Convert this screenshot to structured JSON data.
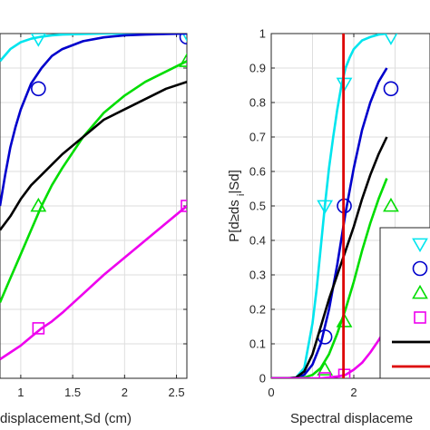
{
  "chart_data": [
    {
      "type": "line",
      "xlabel": "displacement,Sd (cm)",
      "ylabel": "",
      "xlim": [
        0.8,
        2.6
      ],
      "ylim": [
        0,
        1
      ],
      "xticks": [
        "1",
        "1.5",
        "2",
        "2.5"
      ],
      "xtick_values": [
        1,
        1.5,
        2,
        2.5
      ],
      "yticks": [],
      "grid": true,
      "series": [
        {
          "color": "#00e5ee",
          "marker": "triangle-down",
          "x": [
            0.8,
            0.9,
            1.0,
            1.1,
            1.2,
            1.3,
            1.4,
            1.6,
            1.8,
            2.0,
            2.2,
            2.4,
            2.6
          ],
          "y": [
            0.92,
            0.955,
            0.975,
            0.985,
            0.991,
            0.995,
            0.997,
            0.999,
            1,
            1,
            1,
            1,
            1
          ],
          "markers": [
            [
              1.17,
              0.985
            ],
            [
              2.6,
              1.0
            ]
          ]
        },
        {
          "color": "#0000cc",
          "marker": "circle",
          "x": [
            0.8,
            0.85,
            0.9,
            0.95,
            1.0,
            1.1,
            1.2,
            1.3,
            1.4,
            1.6,
            1.8,
            2.0,
            2.2,
            2.4,
            2.6
          ],
          "y": [
            0.5,
            0.59,
            0.67,
            0.73,
            0.78,
            0.855,
            0.9,
            0.935,
            0.955,
            0.978,
            0.989,
            0.995,
            0.997,
            0.999,
            1.0
          ],
          "markers": [
            [
              1.17,
              0.84
            ],
            [
              2.6,
              0.99
            ]
          ]
        },
        {
          "color": "#00dd00",
          "marker": "triangle-up",
          "x": [
            0.8,
            0.9,
            1.0,
            1.1,
            1.2,
            1.3,
            1.4,
            1.6,
            1.8,
            2.0,
            2.2,
            2.4,
            2.6
          ],
          "y": [
            0.22,
            0.29,
            0.36,
            0.43,
            0.5,
            0.56,
            0.61,
            0.7,
            0.77,
            0.82,
            0.86,
            0.89,
            0.92
          ],
          "markers": [
            [
              1.17,
              0.5
            ],
            [
              2.6,
              0.92
            ]
          ]
        },
        {
          "color": "#000000",
          "marker": "none",
          "x": [
            0.8,
            0.9,
            1.0,
            1.1,
            1.2,
            1.3,
            1.4,
            1.6,
            1.8,
            2.0,
            2.2,
            2.4,
            2.6
          ],
          "y": [
            0.43,
            0.47,
            0.52,
            0.56,
            0.59,
            0.62,
            0.65,
            0.7,
            0.75,
            0.78,
            0.81,
            0.84,
            0.86
          ],
          "markers": []
        },
        {
          "color": "#ee00ee",
          "marker": "square",
          "x": [
            0.8,
            0.9,
            1.0,
            1.1,
            1.2,
            1.3,
            1.4,
            1.6,
            1.8,
            2.0,
            2.2,
            2.4,
            2.6
          ],
          "y": [
            0.055,
            0.075,
            0.095,
            0.12,
            0.145,
            0.165,
            0.19,
            0.245,
            0.3,
            0.35,
            0.4,
            0.45,
            0.5
          ],
          "markers": [
            [
              1.17,
              0.145
            ],
            [
              2.6,
              0.5
            ]
          ]
        }
      ]
    },
    {
      "type": "line",
      "xlabel": "Spectral displaceme",
      "ylabel": "P[d≥ds|Sd]",
      "ylabel_sub": "i",
      "xlim": [
        0,
        2.8
      ],
      "ylim": [
        0,
        1
      ],
      "xticks": [
        "0",
        "2"
      ],
      "xtick_values": [
        0,
        2
      ],
      "yticks": [
        "0",
        "0.1",
        "0.2",
        "0.3",
        "0.4",
        "0.5",
        "0.6",
        "0.7",
        "0.8",
        "0.9",
        "1"
      ],
      "grid": true,
      "vertical_line": {
        "x": 1.75,
        "color": "#dd0000"
      },
      "legend_placement": "lower-right",
      "legend_entries": [
        {
          "color": "#00e5ee",
          "marker": "triangle-down"
        },
        {
          "color": "#0000cc",
          "marker": "circle"
        },
        {
          "color": "#00dd00",
          "marker": "triangle-up"
        },
        {
          "color": "#ee00ee",
          "marker": "square"
        },
        {
          "color": "#000000",
          "marker": "line"
        },
        {
          "color": "#dd0000",
          "marker": "line"
        }
      ],
      "series": [
        {
          "color": "#00e5ee",
          "marker": "triangle-down",
          "x": [
            0,
            0.4,
            0.6,
            0.8,
            1.0,
            1.1,
            1.2,
            1.3,
            1.4,
            1.5,
            1.6,
            1.7,
            1.8,
            1.9,
            2.0,
            2.2,
            2.4,
            2.6,
            2.8
          ],
          "y": [
            0,
            0,
            0.002,
            0.03,
            0.16,
            0.26,
            0.38,
            0.5,
            0.61,
            0.7,
            0.78,
            0.85,
            0.9,
            0.93,
            0.955,
            0.98,
            0.99,
            0.997,
            1.0
          ],
          "markers": [
            [
              1.3,
              0.5
            ],
            [
              1.77,
              0.855
            ],
            [
              2.9,
              0.99
            ]
          ]
        },
        {
          "color": "#0000cc",
          "marker": "circle",
          "x": [
            0,
            0.4,
            0.6,
            0.8,
            1.0,
            1.2,
            1.4,
            1.6,
            1.8,
            2.0,
            2.2,
            2.4,
            2.6,
            2.8
          ],
          "y": [
            0,
            0,
            0.001,
            0.01,
            0.04,
            0.1,
            0.2,
            0.33,
            0.48,
            0.61,
            0.72,
            0.8,
            0.86,
            0.9
          ],
          "markers": [
            [
              1.3,
              0.12
            ],
            [
              1.77,
              0.5
            ],
            [
              2.9,
              0.84
            ]
          ]
        },
        {
          "color": "#00dd00",
          "marker": "triangle-up",
          "x": [
            0,
            0.4,
            0.6,
            0.8,
            1.0,
            1.2,
            1.4,
            1.6,
            1.8,
            2.0,
            2.2,
            2.4,
            2.6,
            2.8
          ],
          "y": [
            0,
            0,
            0,
            0.002,
            0.01,
            0.03,
            0.07,
            0.13,
            0.2,
            0.28,
            0.37,
            0.45,
            0.52,
            0.58
          ],
          "markers": [
            [
              1.3,
              0.025
            ],
            [
              1.77,
              0.165
            ],
            [
              2.9,
              0.5
            ]
          ]
        },
        {
          "color": "#000000",
          "marker": "none",
          "x": [
            0,
            0.4,
            0.6,
            0.8,
            1.0,
            1.2,
            1.4,
            1.6,
            1.8,
            2.0,
            2.2,
            2.4,
            2.6,
            2.8
          ],
          "y": [
            0,
            0,
            0.002,
            0.02,
            0.07,
            0.15,
            0.23,
            0.3,
            0.37,
            0.44,
            0.52,
            0.59,
            0.65,
            0.7
          ],
          "markers": []
        },
        {
          "color": "#ee00ee",
          "marker": "square",
          "x": [
            0,
            0.4,
            0.6,
            0.8,
            1.0,
            1.2,
            1.4,
            1.6,
            1.8,
            2.0,
            2.2,
            2.4,
            2.6,
            2.8
          ],
          "y": [
            0,
            0,
            0,
            0,
            0,
            0,
            0.002,
            0.005,
            0.01,
            0.025,
            0.045,
            0.075,
            0.11,
            0.15
          ],
          "markers": [
            [
              1.3,
              0.0
            ],
            [
              1.77,
              0.01
            ]
          ]
        }
      ]
    }
  ]
}
